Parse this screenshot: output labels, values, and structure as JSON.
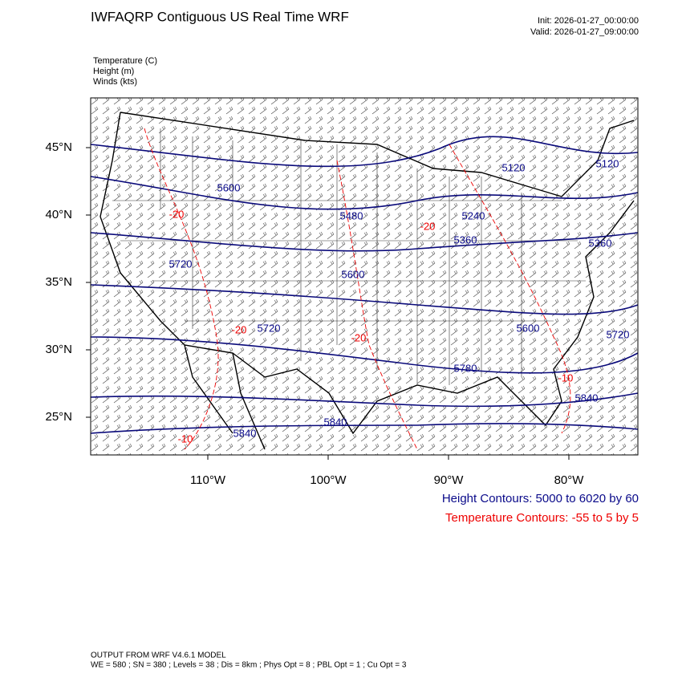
{
  "header": {
    "title": "IWFAQRP Contiguous US Real Time WRF",
    "init": "Init: 2026-01-27_00:00:00",
    "valid": "Valid: 2026-01-27_09:00:00"
  },
  "fields": [
    "Temperature   (C)",
    "Height   (m)",
    "Winds   (kts)"
  ],
  "map": {
    "lat_labels": [
      "45°N",
      "40°N",
      "35°N",
      "30°N",
      "25°N"
    ],
    "lon_labels": [
      "110°W",
      "100°W",
      "90°W",
      "80°W"
    ],
    "height_labels": [
      "5600",
      "5480",
      "5240",
      "5360",
      "5360",
      "5720",
      "5600",
      "5720",
      "5600",
      "5720",
      "5780",
      "5840",
      "5840",
      "5840",
      "5120",
      "5120"
    ],
    "temperature_labels": [
      "-20",
      "-20",
      "-20",
      "-10",
      "-10",
      "-20"
    ]
  },
  "legend": {
    "height": "Height Contours: 5000 to 6020 by 60",
    "temperature": "Temperature Contours: -55 to 5 by 5"
  },
  "footer": [
    "OUTPUT FROM WRF V4.6.1 MODEL",
    "WE = 580 ; SN = 380 ; Levels = 38 ; Dis = 8km ; Phys Opt = 8 ; PBL Opt = 1 ; Cu Opt = 3"
  ]
}
